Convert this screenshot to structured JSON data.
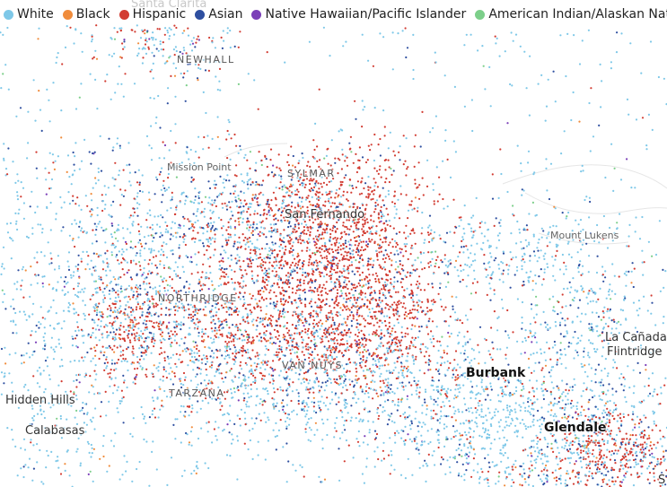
{
  "legend": [
    {
      "label": "White",
      "color": "#7ec8e8"
    },
    {
      "label": "Black",
      "color": "#f08c3c"
    },
    {
      "label": "Hispanic",
      "color": "#d23c32"
    },
    {
      "label": "Asian",
      "color": "#2e4fa0"
    },
    {
      "label": "Native Hawaiian/Pacific Islander",
      "color": "#7b3fb8"
    },
    {
      "label": "American Indian/Alaskan Native",
      "color": "#7ccf8a"
    }
  ],
  "places": {
    "santa_clarita": "Santa Clarita",
    "newhall": "NEWHALL",
    "mission_point": "Mission Point",
    "sylmar": "SYLMAR",
    "san_fernando": "San Fernando",
    "mount_lukens": "Mount Lukens",
    "northridge": "NORTHRIDGE",
    "la_canada_1": "La Cañada",
    "la_canada_2": "Flintridge",
    "van_nuys": "VAN NUYS",
    "burbank": "Burbank",
    "tarzana": "TARZANA",
    "hidden_hills": "Hidden Hills",
    "calabasas": "Calabasas",
    "glendale": "Glendale",
    "edge_s": "S"
  }
}
